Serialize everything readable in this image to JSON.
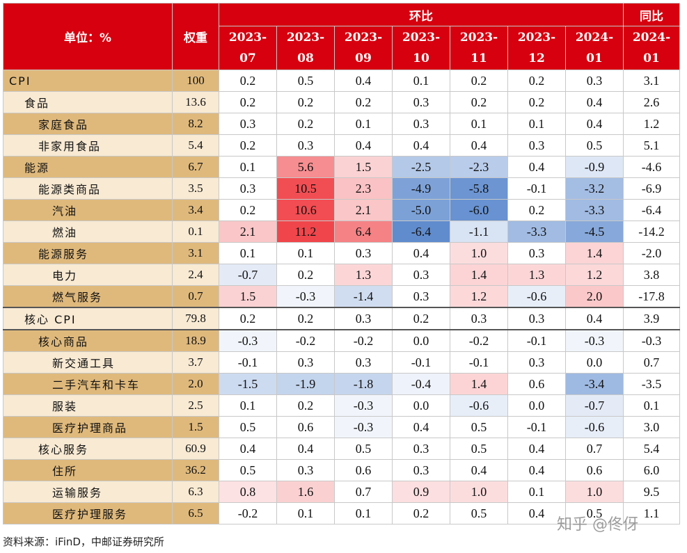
{
  "table": {
    "unit_label": "单位：%",
    "weight_label": "权重",
    "mom_group_label": "环比",
    "yoy_group_label": "同比",
    "months": [
      [
        "2023-",
        "07"
      ],
      [
        "2023-",
        "08"
      ],
      [
        "2023-",
        "09"
      ],
      [
        "2023-",
        "10"
      ],
      [
        "2023-",
        "11"
      ],
      [
        "2023-",
        "12"
      ],
      [
        "2024-",
        "01"
      ]
    ],
    "yoy_month": [
      "2024-",
      "01"
    ],
    "rows": [
      {
        "name": "CPI",
        "indent": 0,
        "weight": "100",
        "mom": [
          "0.2",
          "0.5",
          "0.4",
          "0.1",
          "0.2",
          "0.2",
          "0.3"
        ],
        "yoy": "3.1",
        "shade": "dark"
      },
      {
        "name": "食品",
        "indent": 1,
        "weight": "13.6",
        "mom": [
          "0.2",
          "0.2",
          "0.2",
          "0.3",
          "0.2",
          "0.2",
          "0.4"
        ],
        "yoy": "2.6",
        "shade": "light"
      },
      {
        "name": "家庭食品",
        "indent": 2,
        "weight": "8.2",
        "mom": [
          "0.3",
          "0.2",
          "0.1",
          "0.3",
          "0.1",
          "0.1",
          "0.4"
        ],
        "yoy": "1.2",
        "shade": "dark"
      },
      {
        "name": "非家用食品",
        "indent": 2,
        "weight": "5.4",
        "mom": [
          "0.2",
          "0.3",
          "0.4",
          "0.4",
          "0.4",
          "0.3",
          "0.5"
        ],
        "yoy": "5.1",
        "shade": "light"
      },
      {
        "name": "能源",
        "indent": 1,
        "weight": "6.7",
        "mom": [
          "0.1",
          "5.6",
          "1.5",
          "-2.5",
          "-2.3",
          "0.4",
          "-0.9"
        ],
        "yoy": "-4.6",
        "shade": "dark"
      },
      {
        "name": "能源类商品",
        "indent": 2,
        "weight": "3.5",
        "mom": [
          "0.3",
          "10.5",
          "2.3",
          "-4.9",
          "-5.8",
          "-0.1",
          "-3.2"
        ],
        "yoy": "-6.9",
        "shade": "light"
      },
      {
        "name": "汽油",
        "indent": 3,
        "weight": "3.4",
        "mom": [
          "0.2",
          "10.6",
          "2.1",
          "-5.0",
          "-6.0",
          "0.2",
          "-3.3"
        ],
        "yoy": "-6.4",
        "shade": "dark"
      },
      {
        "name": "燃油",
        "indent": 3,
        "weight": "0.1",
        "mom": [
          "2.1",
          "11.2",
          "6.4",
          "-6.4",
          "-1.1",
          "-3.3",
          "-4.5"
        ],
        "yoy": "-14.2",
        "shade": "light"
      },
      {
        "name": "能源服务",
        "indent": 2,
        "weight": "3.1",
        "mom": [
          "0.1",
          "0.1",
          "0.3",
          "0.4",
          "1.0",
          "0.3",
          "1.4"
        ],
        "yoy": "-2.0",
        "shade": "dark"
      },
      {
        "name": "电力",
        "indent": 3,
        "weight": "2.4",
        "mom": [
          "-0.7",
          "0.2",
          "1.3",
          "0.3",
          "1.4",
          "1.3",
          "1.2"
        ],
        "yoy": "3.8",
        "shade": "light"
      },
      {
        "name": "燃气服务",
        "indent": 3,
        "weight": "0.7",
        "mom": [
          "1.5",
          "-0.3",
          "-1.4",
          "0.3",
          "1.2",
          "-0.6",
          "2.0"
        ],
        "yoy": "-17.8",
        "shade": "dark"
      },
      {
        "name": "核心 CPI",
        "indent": 1,
        "weight": "79.8",
        "mom": [
          "0.2",
          "0.2",
          "0.3",
          "0.2",
          "0.3",
          "0.3",
          "0.4"
        ],
        "yoy": "3.9",
        "shade": "light"
      },
      {
        "name": "核心商品",
        "indent": 2,
        "weight": "18.9",
        "mom": [
          "-0.3",
          "-0.2",
          "-0.2",
          "0.0",
          "-0.2",
          "-0.1",
          "-0.3"
        ],
        "yoy": "-0.3",
        "shade": "dark"
      },
      {
        "name": "新交通工具",
        "indent": 3,
        "weight": "3.7",
        "mom": [
          "-0.1",
          "0.3",
          "0.3",
          "-0.1",
          "-0.1",
          "0.3",
          "0.0"
        ],
        "yoy": "0.7",
        "shade": "light"
      },
      {
        "name": "二手汽车和卡车",
        "indent": 3,
        "weight": "2.0",
        "mom": [
          "-1.5",
          "-1.9",
          "-1.8",
          "-0.4",
          "1.4",
          "0.6",
          "-3.4"
        ],
        "yoy": "-3.5",
        "shade": "dark"
      },
      {
        "name": "服装",
        "indent": 3,
        "weight": "2.5",
        "mom": [
          "0.1",
          "0.2",
          "-0.3",
          "0.0",
          "-0.6",
          "0.0",
          "-0.7"
        ],
        "yoy": "0.1",
        "shade": "light"
      },
      {
        "name": "医疗护理商品",
        "indent": 3,
        "weight": "1.5",
        "mom": [
          "0.5",
          "0.6",
          "-0.3",
          "0.4",
          "0.5",
          "-0.1",
          "-0.6"
        ],
        "yoy": "3.0",
        "shade": "dark"
      },
      {
        "name": "核心服务",
        "indent": 2,
        "weight": "60.9",
        "mom": [
          "0.4",
          "0.4",
          "0.5",
          "0.3",
          "0.5",
          "0.4",
          "0.7"
        ],
        "yoy": "5.4",
        "shade": "light"
      },
      {
        "name": "住所",
        "indent": 3,
        "weight": "36.2",
        "mom": [
          "0.5",
          "0.3",
          "0.6",
          "0.3",
          "0.4",
          "0.4",
          "0.6"
        ],
        "yoy": "6.0",
        "shade": "dark"
      },
      {
        "name": "运输服务",
        "indent": 3,
        "weight": "6.3",
        "mom": [
          "0.8",
          "1.6",
          "0.7",
          "0.9",
          "1.0",
          "0.1",
          "1.0"
        ],
        "yoy": "9.5",
        "shade": "light"
      },
      {
        "name": "医疗护理服务",
        "indent": 3,
        "weight": "6.5",
        "mom": [
          "-0.2",
          "0.1",
          "0.1",
          "0.2",
          "0.5",
          "0.4",
          "0.5"
        ],
        "yoy": "1.1",
        "shade": "dark"
      }
    ]
  },
  "colors": {
    "header_red": "#d6000e",
    "row_dark": "#dfb97c",
    "row_light": "#f8ead3",
    "heat_positive": "#f0464b",
    "heat_negative": "#3b72c0"
  },
  "source_note": "资料来源：iFinD，中邮证券研究所",
  "watermark": "知乎 @佟伢"
}
